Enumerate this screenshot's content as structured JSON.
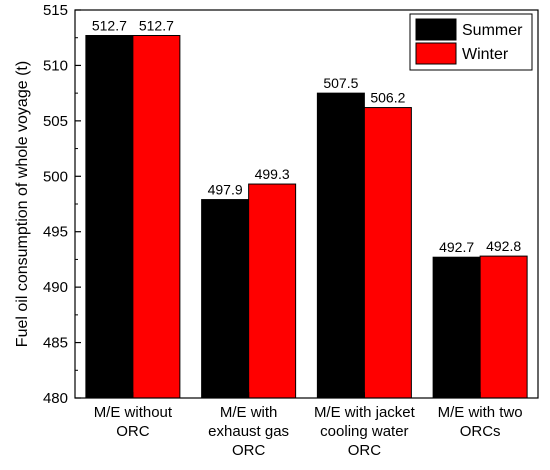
{
  "chart_data": {
    "type": "bar",
    "categories": [
      [
        "M/E without",
        "ORC"
      ],
      [
        "M/E with",
        "exhaust gas",
        "ORC"
      ],
      [
        "M/E with jacket",
        "cooling water",
        "ORC"
      ],
      [
        "M/E with two",
        "ORCs"
      ]
    ],
    "series": [
      {
        "name": "Summer",
        "color": "#000000",
        "values": [
          512.7,
          497.9,
          507.5,
          492.7
        ]
      },
      {
        "name": "Winter",
        "color": "#ff0000",
        "values": [
          512.7,
          499.3,
          506.2,
          492.8
        ]
      }
    ],
    "data_labels": [
      [
        "512.7",
        "497.9",
        "507.5",
        "492.7"
      ],
      [
        "512.7",
        "499.3",
        "506.2",
        "492.8"
      ]
    ],
    "ylabel": "Fuel oil consumption of whole voyage (t)",
    "xlabel": "",
    "ylim": [
      480,
      515
    ],
    "yticks": [
      480,
      485,
      490,
      495,
      500,
      505,
      510,
      515
    ],
    "legend_position": "top-right",
    "grid": false
  }
}
